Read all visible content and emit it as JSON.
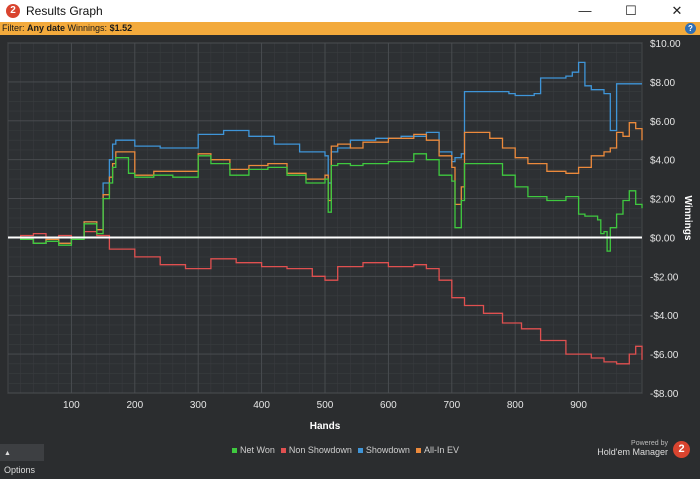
{
  "window": {
    "app_icon": "2",
    "title": "Results Graph",
    "minimize_icon": "minimize-icon",
    "maximize_icon": "maximize-icon",
    "close_icon": "close-icon"
  },
  "filter_bar": {
    "filter_label": "Filter:",
    "filter_value": "Any date",
    "winnings_label": "Winnings:",
    "winnings_value": "$1.52",
    "help_icon": "?"
  },
  "footer": {
    "options_label": "Options",
    "powered_by": "Powered by",
    "product_name": "Hold'em Manager",
    "logo_text": "2"
  },
  "colors": {
    "net_won": "#3fc93f",
    "non_showdown": "#e05050",
    "showdown": "#3f95d8",
    "all_in_ev": "#ec8a3c",
    "zero_line": "#ffffff",
    "background": "#2b2d2f",
    "grid": "#44474a",
    "filter_bar": "#f3aa3c"
  },
  "chart_data": {
    "type": "line",
    "title": "",
    "xlabel": "Hands",
    "ylabel": "Winnings",
    "xlim": [
      0,
      1000
    ],
    "ylim": [
      -8,
      10
    ],
    "xticks": [
      100,
      200,
      300,
      400,
      500,
      600,
      700,
      800,
      900
    ],
    "yticks": [
      -8,
      -6,
      -4,
      -2,
      0,
      2,
      4,
      6,
      8,
      10
    ],
    "ytick_labels": [
      "-$8.00",
      "-$6.00",
      "-$4.00",
      "-$2.00",
      "$0.00",
      "$2.00",
      "$4.00",
      "$6.00",
      "$8.00",
      "$10.00"
    ],
    "grid": true,
    "legend_position": "bottom",
    "series": [
      {
        "name": "Net Won",
        "color": "#3fc93f",
        "x": [
          0,
          20,
          40,
          60,
          80,
          100,
          120,
          140,
          150,
          160,
          165,
          170,
          190,
          200,
          230,
          260,
          300,
          320,
          350,
          380,
          410,
          440,
          470,
          500,
          505,
          510,
          520,
          540,
          560,
          600,
          640,
          660,
          680,
          700,
          705,
          715,
          720,
          740,
          780,
          800,
          820,
          850,
          880,
          900,
          910,
          930,
          935,
          940,
          945,
          950,
          960,
          970,
          980,
          990,
          1000
        ],
        "y": [
          0,
          -0.1,
          -0.3,
          -0.2,
          -0.4,
          -0.1,
          0.7,
          0.2,
          2.0,
          2.8,
          3.6,
          4.1,
          3.3,
          3.1,
          3.2,
          3.1,
          4.2,
          3.8,
          3.2,
          3.5,
          3.6,
          3.2,
          2.8,
          3.0,
          1.3,
          3.7,
          3.8,
          3.7,
          3.8,
          3.9,
          4.3,
          4.0,
          3.2,
          2.9,
          0.5,
          1.9,
          3.8,
          3.8,
          3.2,
          2.6,
          2.1,
          1.9,
          2.1,
          1.2,
          1.1,
          0.9,
          0.2,
          0.3,
          -0.7,
          0.5,
          1.2,
          1.9,
          2.4,
          1.7,
          1.5
        ]
      },
      {
        "name": "Non Showdown",
        "color": "#e05050",
        "x": [
          0,
          20,
          40,
          60,
          80,
          100,
          120,
          140,
          160,
          200,
          240,
          280,
          320,
          360,
          400,
          440,
          480,
          500,
          520,
          560,
          600,
          640,
          660,
          680,
          700,
          720,
          750,
          780,
          810,
          840,
          880,
          920,
          940,
          960,
          980,
          990,
          1000
        ],
        "y": [
          0,
          0.1,
          0.2,
          0.0,
          0.1,
          0.0,
          0.3,
          0.1,
          -0.6,
          -1.0,
          -1.4,
          -1.6,
          -1.1,
          -1.3,
          -1.5,
          -1.6,
          -2.0,
          -2.2,
          -1.5,
          -1.3,
          -1.5,
          -1.4,
          -1.6,
          -2.2,
          -3.1,
          -3.5,
          -3.9,
          -4.4,
          -4.7,
          -5.3,
          -6.0,
          -6.2,
          -6.4,
          -6.5,
          -6.0,
          -5.6,
          -6.3
        ]
      },
      {
        "name": "Showdown",
        "color": "#3f95d8",
        "x": [
          0,
          20,
          40,
          60,
          80,
          100,
          120,
          140,
          150,
          160,
          165,
          170,
          200,
          240,
          280,
          300,
          340,
          380,
          420,
          460,
          500,
          505,
          510,
          520,
          540,
          580,
          620,
          660,
          680,
          700,
          705,
          715,
          720,
          760,
          790,
          800,
          830,
          840,
          880,
          890,
          900,
          910,
          920,
          940,
          950,
          960,
          1000
        ],
        "y": [
          0,
          -0.1,
          -0.3,
          -0.1,
          -0.3,
          0,
          0.8,
          0.4,
          2.8,
          4.0,
          4.8,
          5.0,
          4.7,
          4.6,
          4.6,
          5.3,
          5.5,
          5.2,
          4.8,
          4.4,
          4.2,
          2.8,
          4.4,
          4.6,
          5.0,
          5.1,
          5.2,
          5.4,
          4.4,
          3.9,
          4.1,
          4.3,
          7.5,
          7.5,
          7.4,
          7.3,
          7.4,
          8.2,
          8.3,
          8.5,
          9.0,
          7.8,
          7.6,
          7.4,
          5.5,
          7.9,
          7.9
        ]
      },
      {
        "name": "All-In EV",
        "color": "#ec8a3c",
        "x": [
          0,
          20,
          40,
          60,
          80,
          100,
          120,
          140,
          150,
          160,
          165,
          170,
          200,
          230,
          260,
          300,
          320,
          350,
          380,
          410,
          440,
          470,
          500,
          505,
          510,
          520,
          540,
          560,
          600,
          640,
          660,
          680,
          700,
          705,
          715,
          720,
          760,
          780,
          800,
          820,
          850,
          880,
          900,
          920,
          940,
          950,
          960,
          970,
          980,
          990,
          1000
        ],
        "y": [
          0,
          -0.1,
          -0.3,
          -0.1,
          -0.3,
          0,
          0.8,
          0.4,
          2.2,
          3.1,
          3.8,
          4.4,
          3.2,
          3.4,
          3.4,
          4.3,
          4.0,
          3.5,
          3.7,
          3.8,
          3.3,
          3.0,
          3.2,
          1.9,
          4.7,
          4.8,
          4.6,
          4.9,
          5.1,
          5.3,
          5.0,
          4.2,
          3.6,
          1.7,
          2.6,
          5.4,
          5.1,
          4.6,
          4.1,
          3.8,
          3.4,
          3.3,
          3.6,
          4.2,
          4.4,
          4.6,
          5.4,
          5.2,
          5.9,
          5.6,
          5.0
        ]
      }
    ]
  }
}
